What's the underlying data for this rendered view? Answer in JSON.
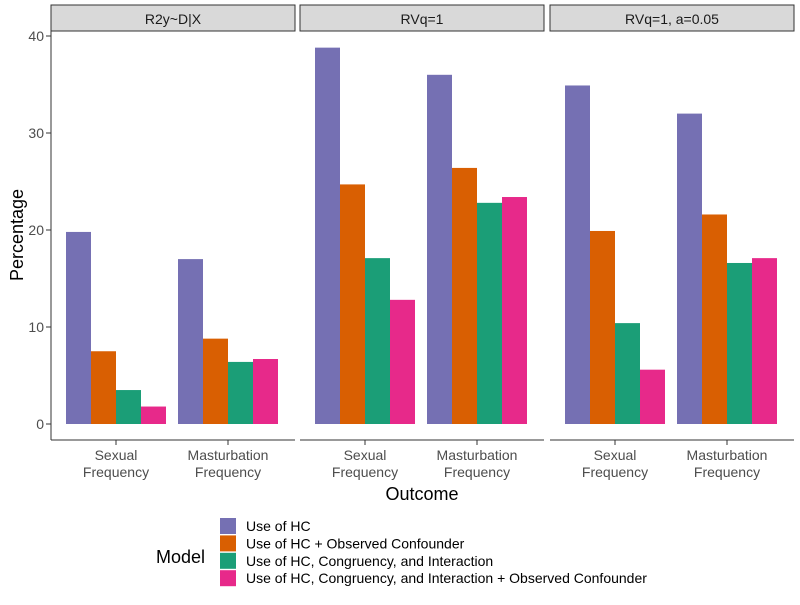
{
  "chart_data": {
    "type": "bar",
    "facet_by": "panel",
    "ylabel": "Percentage",
    "xlabel": "Outcome",
    "ylim": [
      0,
      41
    ],
    "y_ticks": [
      0,
      10,
      20,
      30,
      40
    ],
    "categories": [
      {
        "line1": "Sexual",
        "line2": "Frequency"
      },
      {
        "line1": "Masturbation",
        "line2": "Frequency"
      }
    ],
    "series": [
      {
        "name": "Use of HC",
        "color": "#7570B3"
      },
      {
        "name": "Use of HC + Observed Confounder",
        "color": "#D95F02"
      },
      {
        "name": "Use of HC, Congruency, and Interaction",
        "color": "#1B9E77"
      },
      {
        "name": "Use of HC, Congruency, and Interaction + Observed Confounder",
        "color": "#E7298A"
      }
    ],
    "panels": [
      {
        "title": "R2y~D|X",
        "values": [
          [
            19.8,
            17.0
          ],
          [
            7.5,
            8.8
          ],
          [
            3.5,
            6.4
          ],
          [
            1.8,
            6.7
          ]
        ]
      },
      {
        "title": "RVq=1",
        "values": [
          [
            38.8,
            36.0
          ],
          [
            24.7,
            26.4
          ],
          [
            17.1,
            22.8
          ],
          [
            12.8,
            23.4
          ]
        ]
      },
      {
        "title": "RVq=1, a=0.05",
        "values": [
          [
            34.9,
            32.0
          ],
          [
            19.9,
            21.6
          ],
          [
            10.4,
            16.6
          ],
          [
            5.6,
            17.1
          ]
        ]
      }
    ],
    "legend": {
      "title": "Model",
      "position": "bottom"
    },
    "grid": false,
    "colors": {
      "strip_fill": "#D9D9D9",
      "strip_border": "#333333",
      "axis": "#333333",
      "tick_text": "#4D4D4D"
    }
  }
}
